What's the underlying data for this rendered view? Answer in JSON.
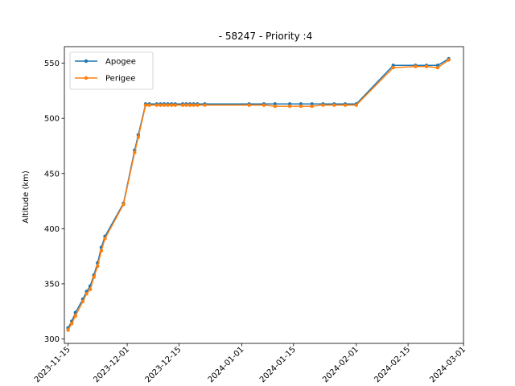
{
  "chart_data": {
    "type": "line",
    "title": " - 58247 - Priority :4",
    "xlabel": "",
    "ylabel": "Altitude (km)",
    "xlim": [
      "2023-11-14",
      "2024-03-01"
    ],
    "ylim": [
      296,
      565
    ],
    "x_ticks": [
      "2023-11-15",
      "2023-12-01",
      "2023-12-15",
      "2024-01-01",
      "2024-01-15",
      "2024-02-01",
      "2024-02-15",
      "2024-03-01"
    ],
    "y_ticks": [
      300,
      350,
      400,
      450,
      500,
      550
    ],
    "grid": false,
    "legend": "upper-left",
    "series": [
      {
        "name": "Apogee",
        "color": "#1f77b4",
        "x": [
          "2023-11-15",
          "2023-11-16",
          "2023-11-17",
          "2023-11-19",
          "2023-11-20",
          "2023-11-21",
          "2023-11-22",
          "2023-11-23",
          "2023-11-24",
          "2023-11-25",
          "2023-11-30",
          "2023-12-03",
          "2023-12-04",
          "2023-12-06",
          "2023-12-07",
          "2023-12-09",
          "2023-12-10",
          "2023-12-11",
          "2023-12-12",
          "2023-12-13",
          "2023-12-14",
          "2023-12-16",
          "2023-12-17",
          "2023-12-18",
          "2023-12-19",
          "2023-12-20",
          "2023-12-22",
          "2024-01-03",
          "2024-01-07",
          "2024-01-10",
          "2024-01-14",
          "2024-01-17",
          "2024-01-20",
          "2024-01-23",
          "2024-01-26",
          "2024-01-29",
          "2024-02-01",
          "2024-02-11",
          "2024-02-17",
          "2024-02-20",
          "2024-02-23",
          "2024-02-26"
        ],
        "values": [
          310,
          316,
          324,
          336,
          343,
          348,
          358,
          369,
          383,
          393,
          423,
          471,
          485,
          513,
          513,
          513,
          513,
          513,
          513,
          513,
          513,
          513,
          513,
          513,
          513,
          513,
          513,
          513,
          513,
          513,
          513,
          513,
          513,
          513,
          513,
          513,
          513,
          548,
          548,
          548,
          548,
          554
        ]
      },
      {
        "name": "Perigee",
        "color": "#ff7f0e",
        "x": [
          "2023-11-15",
          "2023-11-16",
          "2023-11-17",
          "2023-11-19",
          "2023-11-20",
          "2023-11-21",
          "2023-11-22",
          "2023-11-23",
          "2023-11-24",
          "2023-11-25",
          "2023-11-30",
          "2023-12-03",
          "2023-12-04",
          "2023-12-06",
          "2023-12-07",
          "2023-12-09",
          "2023-12-10",
          "2023-12-11",
          "2023-12-12",
          "2023-12-13",
          "2023-12-14",
          "2023-12-16",
          "2023-12-17",
          "2023-12-18",
          "2023-12-19",
          "2023-12-20",
          "2023-12-22",
          "2024-01-03",
          "2024-01-07",
          "2024-01-10",
          "2024-01-14",
          "2024-01-17",
          "2024-01-20",
          "2024-01-23",
          "2024-01-26",
          "2024-01-29",
          "2024-02-01",
          "2024-02-11",
          "2024-02-17",
          "2024-02-20",
          "2024-02-23",
          "2024-02-26"
        ],
        "values": [
          308,
          314,
          321,
          334,
          341,
          345,
          356,
          366,
          380,
          391,
          422,
          469,
          483,
          512,
          512,
          512,
          512,
          512,
          512,
          512,
          512,
          512,
          512,
          512,
          512,
          512,
          512,
          512,
          512,
          511,
          511,
          511,
          511,
          512,
          512,
          512,
          512,
          546,
          547,
          547,
          546,
          553
        ]
      }
    ]
  }
}
